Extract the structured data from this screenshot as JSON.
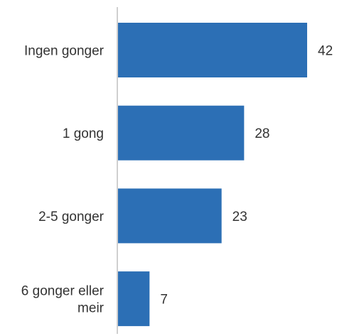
{
  "chart_data": {
    "type": "bar",
    "orientation": "horizontal",
    "categories": [
      [
        "Ingen gonger"
      ],
      [
        "1 gong"
      ],
      [
        "2-5 gonger"
      ],
      [
        "6 gonger eller",
        "meir"
      ]
    ],
    "values": [
      42,
      28,
      23,
      7
    ],
    "data_labels": [
      "42",
      "28",
      "23",
      "7"
    ],
    "xlim": [
      0,
      48
    ],
    "grid": false,
    "legend": "none",
    "colors": {
      "bar": "#2c6fb5",
      "axis": "#cfcfcf",
      "text": "#333333"
    }
  }
}
